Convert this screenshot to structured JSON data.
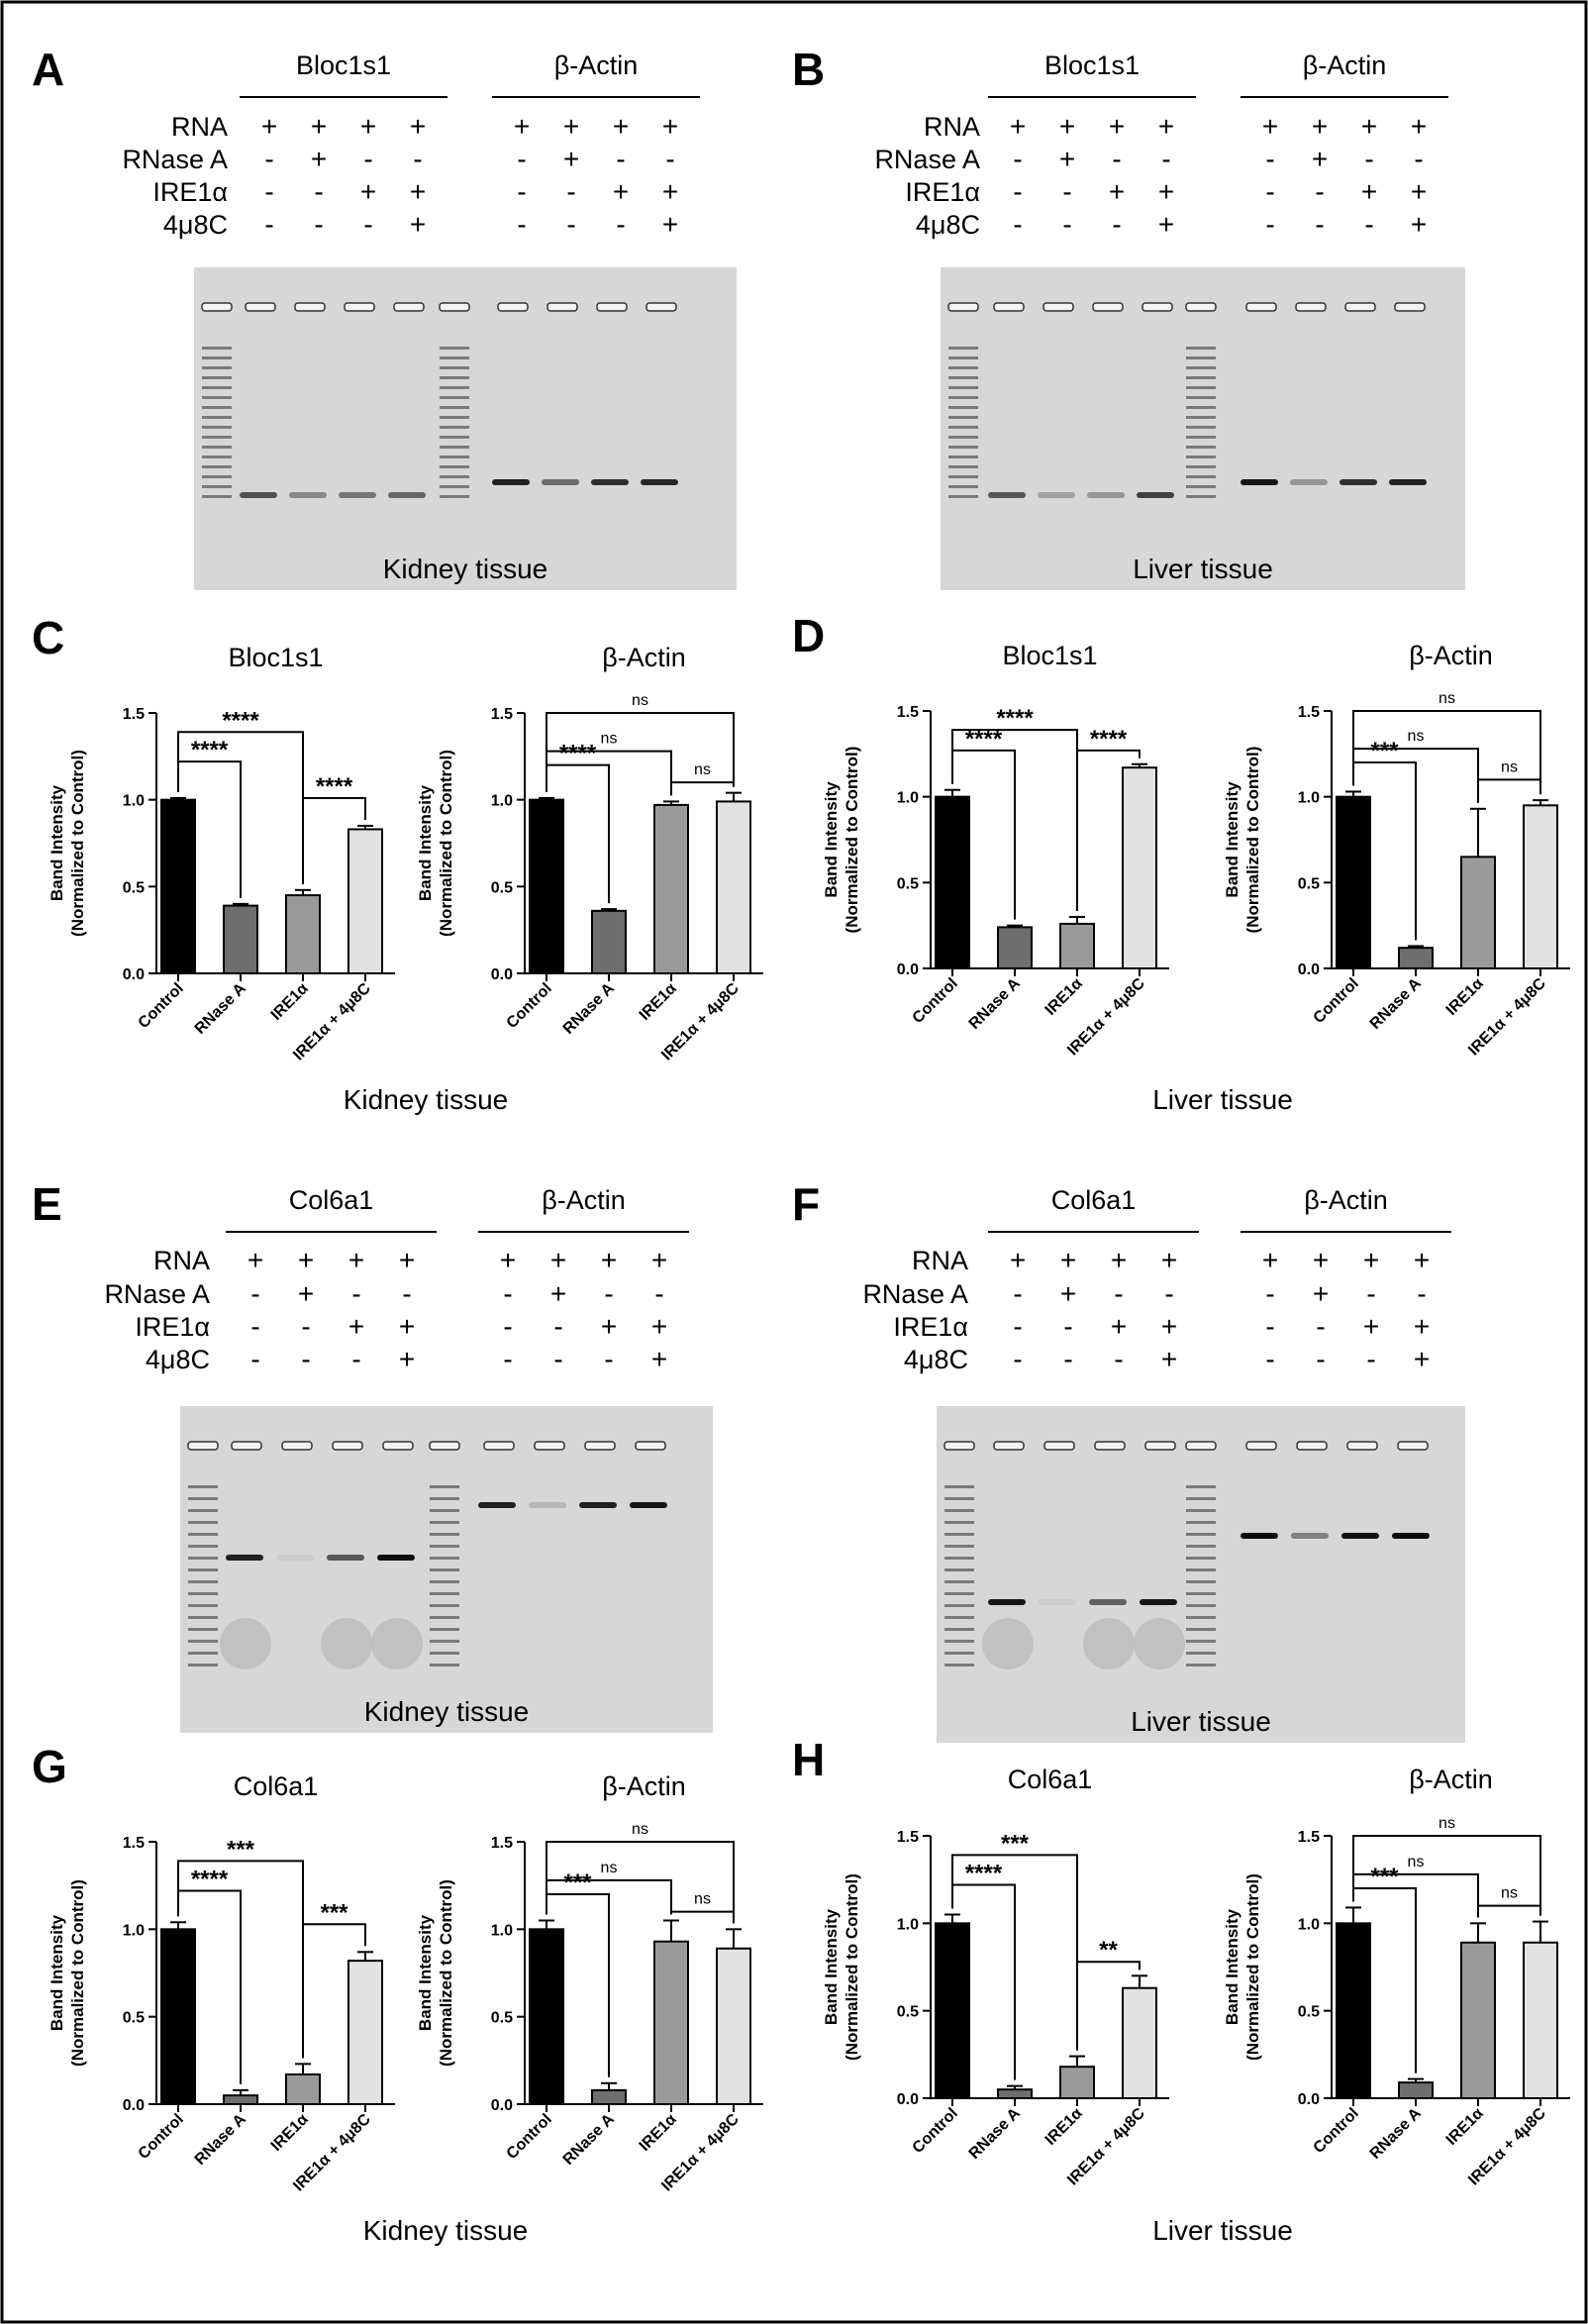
{
  "gel_panels": [
    {
      "letter": "A",
      "target": "Bloc1s1",
      "control_gene": "β-Actin",
      "tissue": "Kidney tissue",
      "condition_labels": [
        "RNA",
        "RNase A",
        "IRE1α",
        "4μ8C"
      ],
      "signs": [
        [
          "+",
          "+",
          "+",
          "+"
        ],
        [
          "-",
          "+",
          "-",
          "-"
        ],
        [
          "-",
          "-",
          "+",
          "+"
        ],
        [
          "-",
          "-",
          "-",
          "+"
        ]
      ]
    },
    {
      "letter": "B",
      "target": "Bloc1s1",
      "control_gene": "β-Actin",
      "tissue": "Liver tissue",
      "condition_labels": [
        "RNA",
        "RNase A",
        "IRE1α",
        "4μ8C"
      ],
      "signs": [
        [
          "+",
          "+",
          "+",
          "+"
        ],
        [
          "-",
          "+",
          "-",
          "-"
        ],
        [
          "-",
          "-",
          "+",
          "+"
        ],
        [
          "-",
          "-",
          "-",
          "+"
        ]
      ]
    },
    {
      "letter": "E",
      "target": "Col6a1",
      "control_gene": "β-Actin",
      "tissue": "Kidney tissue",
      "condition_labels": [
        "RNA",
        "RNase A",
        "IRE1α",
        "4μ8C"
      ],
      "signs": [
        [
          "+",
          "+",
          "+",
          "+"
        ],
        [
          "-",
          "+",
          "-",
          "-"
        ],
        [
          "-",
          "-",
          "+",
          "+"
        ],
        [
          "-",
          "-",
          "-",
          "+"
        ]
      ]
    },
    {
      "letter": "F",
      "target": "Col6a1",
      "control_gene": "β-Actin",
      "tissue": "Liver tissue",
      "condition_labels": [
        "RNA",
        "RNase A",
        "IRE1α",
        "4μ8C"
      ],
      "signs": [
        [
          "+",
          "+",
          "+",
          "+"
        ],
        [
          "-",
          "+",
          "-",
          "-"
        ],
        [
          "-",
          "-",
          "+",
          "+"
        ],
        [
          "-",
          "-",
          "-",
          "+"
        ]
      ]
    }
  ],
  "bar_panels": [
    {
      "letter": "C",
      "tissue": "Kidney tissue"
    },
    {
      "letter": "D",
      "tissue": "Liver tissue"
    },
    {
      "letter": "G",
      "tissue": "Kidney tissue"
    },
    {
      "letter": "H",
      "tissue": "Liver tissue"
    }
  ],
  "colors": {
    "control": "#000000",
    "rnase": "#6e6e6e",
    "ire1": "#9a9a9a",
    "ire1_4u8c": "#e2e2e2"
  },
  "chart_data": [
    {
      "type": "bar",
      "panel": "C",
      "title": "Bloc1s1",
      "ylabel": "Band Intensity\n(Normalized to Control)",
      "categories": [
        "Control",
        "RNase A",
        "IRE1α",
        "IRE1α + 4μ8C"
      ],
      "values": [
        1.0,
        0.39,
        0.45,
        0.83
      ],
      "errors": [
        0.01,
        0.01,
        0.03,
        0.02
      ],
      "ylim": [
        0,
        1.5
      ],
      "yticks": [
        "0.0",
        "0.5",
        "1.0",
        "1.5"
      ],
      "significance": [
        {
          "pair": [
            0,
            1
          ],
          "label": "****"
        },
        {
          "pair": [
            0,
            2
          ],
          "label": "****"
        },
        {
          "pair": [
            2,
            3
          ],
          "label": "****"
        }
      ]
    },
    {
      "type": "bar",
      "panel": "C",
      "title": "β-Actin",
      "ylabel": "Band Intensity\n(Normalized to Control)",
      "categories": [
        "Control",
        "RNase A",
        "IRE1α",
        "IRE1α + 4μ8C"
      ],
      "values": [
        1.0,
        0.36,
        0.97,
        0.99
      ],
      "errors": [
        0.01,
        0.01,
        0.02,
        0.05
      ],
      "ylim": [
        0,
        1.5
      ],
      "yticks": [
        "0.0",
        "0.5",
        "1.0",
        "1.5"
      ],
      "significance": [
        {
          "pair": [
            0,
            1
          ],
          "label": "****"
        },
        {
          "pair": [
            0,
            2
          ],
          "label": "ns"
        },
        {
          "pair": [
            0,
            3
          ],
          "label": "ns"
        },
        {
          "pair": [
            2,
            3
          ],
          "label": "ns"
        }
      ]
    },
    {
      "type": "bar",
      "panel": "D",
      "title": "Bloc1s1",
      "ylabel": "Band Intensity\n(Normalized to Control)",
      "categories": [
        "Control",
        "RNase A",
        "IRE1α",
        "IRE1α + 4μ8C"
      ],
      "values": [
        1.0,
        0.24,
        0.26,
        1.17
      ],
      "errors": [
        0.04,
        0.01,
        0.04,
        0.02
      ],
      "ylim": [
        0,
        1.5
      ],
      "yticks": [
        "0.0",
        "0.5",
        "1.0",
        "1.5"
      ],
      "significance": [
        {
          "pair": [
            0,
            1
          ],
          "label": "****"
        },
        {
          "pair": [
            0,
            2
          ],
          "label": "****"
        },
        {
          "pair": [
            2,
            3
          ],
          "label": "****"
        }
      ]
    },
    {
      "type": "bar",
      "panel": "D",
      "title": "β-Actin",
      "ylabel": "Band Intensity\n(Normalized to Control)",
      "categories": [
        "Control",
        "RNase A",
        "IRE1α",
        "IRE1α + 4μ8C"
      ],
      "values": [
        1.0,
        0.12,
        0.65,
        0.95
      ],
      "errors": [
        0.03,
        0.01,
        0.28,
        0.03
      ],
      "ylim": [
        0,
        1.5
      ],
      "yticks": [
        "0.0",
        "0.5",
        "1.0",
        "1.5"
      ],
      "significance": [
        {
          "pair": [
            0,
            1
          ],
          "label": "***"
        },
        {
          "pair": [
            0,
            2
          ],
          "label": "ns"
        },
        {
          "pair": [
            0,
            3
          ],
          "label": "ns"
        },
        {
          "pair": [
            2,
            3
          ],
          "label": "ns"
        }
      ]
    },
    {
      "type": "bar",
      "panel": "G",
      "title": "Col6a1",
      "ylabel": "Band Intensity\n(Normalized to Control)",
      "categories": [
        "Control",
        "RNase A",
        "IRE1α",
        "IRE1α + 4μ8C"
      ],
      "values": [
        1.0,
        0.05,
        0.17,
        0.82
      ],
      "errors": [
        0.04,
        0.03,
        0.06,
        0.05
      ],
      "ylim": [
        0,
        1.5
      ],
      "yticks": [
        "0.0",
        "0.5",
        "1.0",
        "1.5"
      ],
      "significance": [
        {
          "pair": [
            0,
            1
          ],
          "label": "****"
        },
        {
          "pair": [
            0,
            2
          ],
          "label": "***"
        },
        {
          "pair": [
            2,
            3
          ],
          "label": "***"
        }
      ]
    },
    {
      "type": "bar",
      "panel": "G",
      "title": "β-Actin",
      "ylabel": "Band Intensity\n(Normalized to Control)",
      "categories": [
        "Control",
        "RNase A",
        "IRE1α",
        "IRE1α + 4μ8C"
      ],
      "values": [
        1.0,
        0.08,
        0.93,
        0.89
      ],
      "errors": [
        0.05,
        0.04,
        0.12,
        0.11
      ],
      "ylim": [
        0,
        1.5
      ],
      "yticks": [
        "0.0",
        "0.5",
        "1.0",
        "1.5"
      ],
      "significance": [
        {
          "pair": [
            0,
            1
          ],
          "label": "***"
        },
        {
          "pair": [
            0,
            2
          ],
          "label": "ns"
        },
        {
          "pair": [
            0,
            3
          ],
          "label": "ns"
        },
        {
          "pair": [
            2,
            3
          ],
          "label": "ns"
        }
      ]
    },
    {
      "type": "bar",
      "panel": "H",
      "title": "Col6a1",
      "ylabel": "Band Intensity\n(Normalized to Control)",
      "categories": [
        "Control",
        "RNase A",
        "IRE1α",
        "IRE1α + 4μ8C"
      ],
      "values": [
        1.0,
        0.05,
        0.18,
        0.63
      ],
      "errors": [
        0.05,
        0.02,
        0.06,
        0.07
      ],
      "ylim": [
        0,
        1.5
      ],
      "yticks": [
        "0.0",
        "0.5",
        "1.0",
        "1.5"
      ],
      "significance": [
        {
          "pair": [
            0,
            1
          ],
          "label": "****"
        },
        {
          "pair": [
            0,
            2
          ],
          "label": "***"
        },
        {
          "pair": [
            2,
            3
          ],
          "label": "**"
        }
      ]
    },
    {
      "type": "bar",
      "panel": "H",
      "title": "β-Actin",
      "ylabel": "Band Intensity\n(Normalized to Control)",
      "categories": [
        "Control",
        "RNase A",
        "IRE1α",
        "IRE1α + 4μ8C"
      ],
      "values": [
        1.0,
        0.09,
        0.89,
        0.89
      ],
      "errors": [
        0.09,
        0.02,
        0.11,
        0.12
      ],
      "ylim": [
        0,
        1.5
      ],
      "yticks": [
        "0.0",
        "0.5",
        "1.0",
        "1.5"
      ],
      "significance": [
        {
          "pair": [
            0,
            1
          ],
          "label": "***"
        },
        {
          "pair": [
            0,
            2
          ],
          "label": "ns"
        },
        {
          "pair": [
            0,
            3
          ],
          "label": "ns"
        },
        {
          "pair": [
            2,
            3
          ],
          "label": "ns"
        }
      ]
    }
  ]
}
